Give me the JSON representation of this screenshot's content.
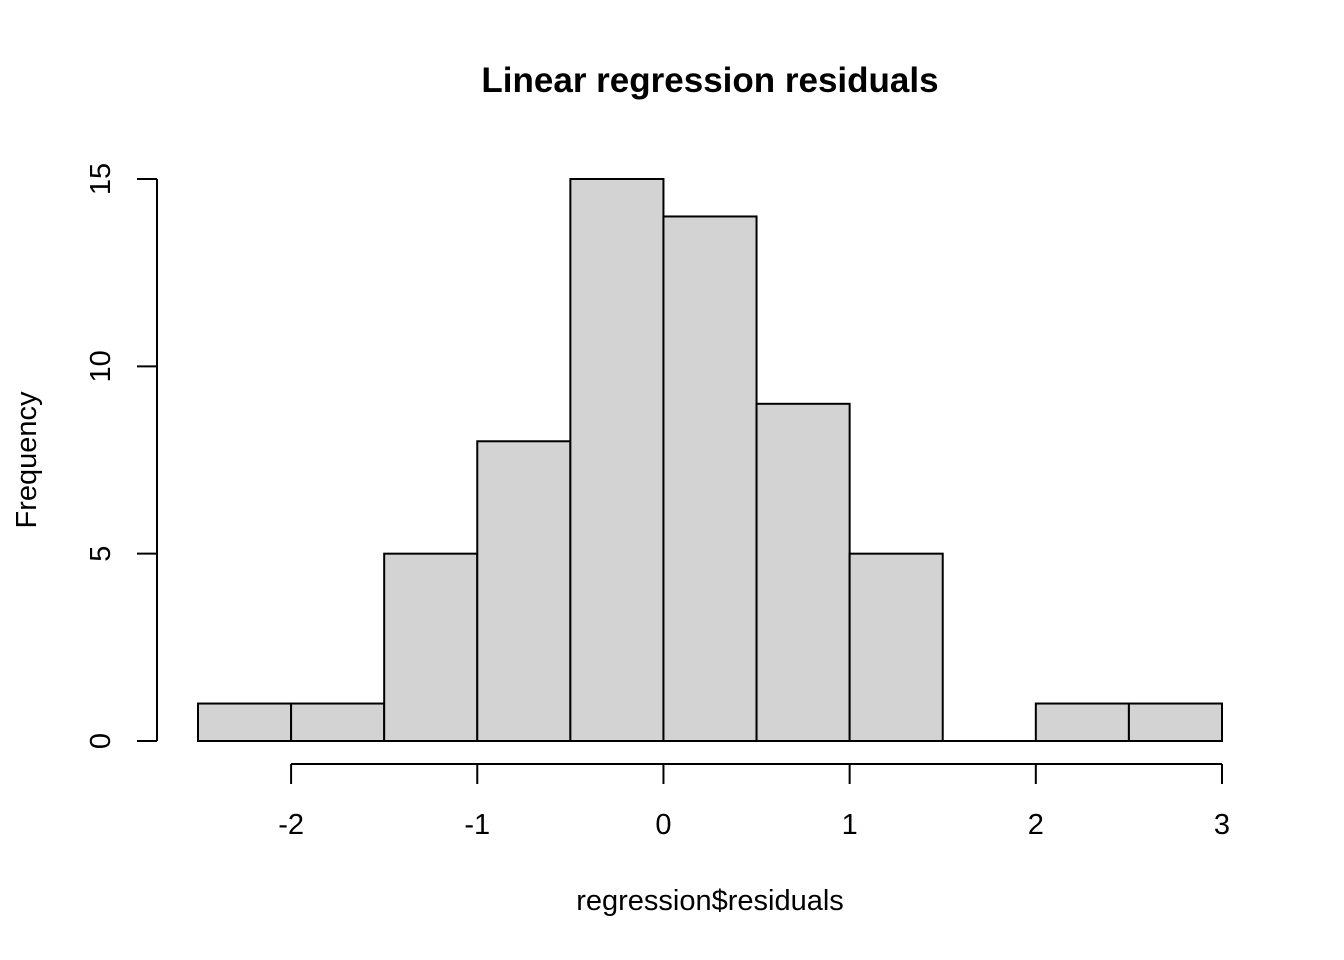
{
  "chart_data": {
    "type": "bar",
    "title": "Linear regression residuals",
    "xlabel": "regression$residuals",
    "ylabel": "Frequency",
    "bin_edges": [
      -2.5,
      -2.0,
      -1.5,
      -1.0,
      -0.5,
      0.0,
      0.5,
      1.0,
      1.5,
      2.0,
      2.5,
      3.0
    ],
    "values": [
      1,
      1,
      5,
      8,
      15,
      14,
      9,
      5,
      0,
      1,
      1
    ],
    "xticks": [
      -2,
      -1,
      0,
      1,
      2,
      3
    ],
    "yticks": [
      0,
      5,
      10,
      15
    ],
    "xlim": [
      -2.5,
      3.0
    ],
    "ylim": [
      0,
      15
    ],
    "bar_color": "#d3d3d3",
    "border_color": "#000000",
    "grid": false,
    "legend": "none"
  }
}
